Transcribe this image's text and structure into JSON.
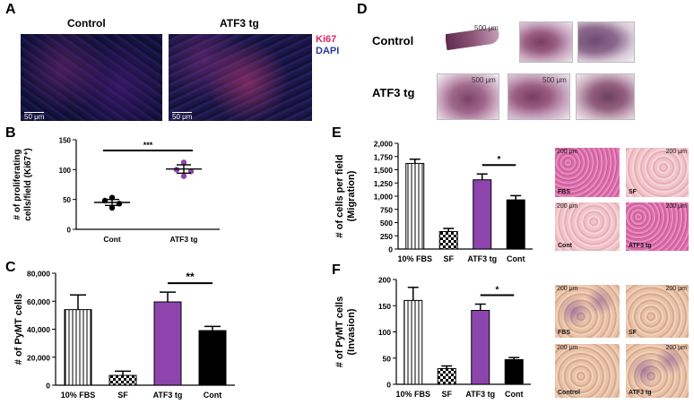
{
  "panel_labels": {
    "A": "A",
    "B": "B",
    "C": "C",
    "D": "D",
    "E": "E",
    "F": "F"
  },
  "panelA": {
    "control_title": "Control",
    "atf3_title": "ATF3 tg",
    "legend_ki67": "Ki67",
    "legend_dapi": "DAPI",
    "scale_text": "50 μm",
    "colors": {
      "ki67": "#e0245e",
      "dapi": "#2a3a9c"
    }
  },
  "panelD": {
    "row1_label": "Control",
    "row2_label": "ATF3 tg",
    "scale_text": "500 μm"
  },
  "panelE_images": {
    "labels": [
      "FBS",
      "SF",
      "Cont",
      "ATF3 tg"
    ],
    "scale_text": "200 μm"
  },
  "panelF_images": {
    "labels": [
      "FBS",
      "SF",
      "Control",
      "ATF3 tg"
    ],
    "scale_text": "200 μm"
  },
  "chart_data": [
    {
      "id": "B",
      "type": "scatter",
      "ylabel": "# of proliferating cells/field (Ki67⁺)",
      "xlabel": "",
      "categories": [
        "Cont",
        "ATF3 tg"
      ],
      "ylim": [
        0,
        150
      ],
      "yticks": [
        0,
        50,
        100,
        150
      ],
      "points": [
        {
          "category": "Cont",
          "values": [
            53,
            48,
            43,
            36
          ]
        },
        {
          "category": "ATF3 tg",
          "values": [
            112,
            100,
            97,
            89
          ]
        }
      ],
      "means": [
        45,
        101
      ],
      "sem": [
        5,
        7
      ],
      "colors": {
        "Cont": "#000000",
        "ATF3 tg": "#8e44ad"
      },
      "significance": "***"
    },
    {
      "id": "C",
      "type": "bar",
      "ylabel": "# of PyMT cells",
      "categories": [
        "10% FBS",
        "SF",
        "ATF3 tg",
        "Cont"
      ],
      "values": [
        54000,
        7000,
        59500,
        39000
      ],
      "errors": [
        10500,
        3000,
        7000,
        3000
      ],
      "ylim": [
        0,
        80000
      ],
      "yticks": [
        0,
        20000,
        40000,
        60000,
        80000
      ],
      "ytick_labels": [
        "0",
        "20,000",
        "40,000",
        "60,000",
        "80,000"
      ],
      "significance": "**",
      "colors": {
        "ATF3 tg": "#8e44ad",
        "Cont": "#000000"
      }
    },
    {
      "id": "E",
      "type": "bar",
      "ylabel": "# of cells per field (Migration)",
      "categories": [
        "10%  FBS",
        "SF",
        "ATF3 tg",
        "Cont"
      ],
      "values": [
        1620,
        330,
        1310,
        930
      ],
      "errors": [
        80,
        60,
        110,
        80
      ],
      "ylim": [
        0,
        2000
      ],
      "yticks": [
        0,
        250,
        500,
        750,
        1000,
        1250,
        1500,
        1750,
        2000
      ],
      "ytick_labels": [
        "0",
        "250",
        "500",
        "750",
        "1,000",
        "1,250",
        "1,500",
        "1,750",
        "2,000"
      ],
      "significance": "*",
      "colors": {
        "ATF3 tg": "#8e44ad",
        "Cont": "#000000"
      }
    },
    {
      "id": "F",
      "type": "bar",
      "ylabel": "# of PyMT cells (Invasion)",
      "categories": [
        "10%  FBS",
        "SF",
        "ATF3 tg",
        "Cont"
      ],
      "values": [
        160,
        30,
        141,
        47
      ],
      "errors": [
        25,
        5,
        12,
        4
      ],
      "ylim": [
        0,
        200
      ],
      "yticks": [
        0,
        50,
        100,
        150,
        200
      ],
      "ytick_labels": [
        "0",
        "50",
        "100",
        "150",
        "200"
      ],
      "significance": "*",
      "colors": {
        "ATF3 tg": "#8e44ad",
        "Cont": "#000000"
      }
    }
  ]
}
